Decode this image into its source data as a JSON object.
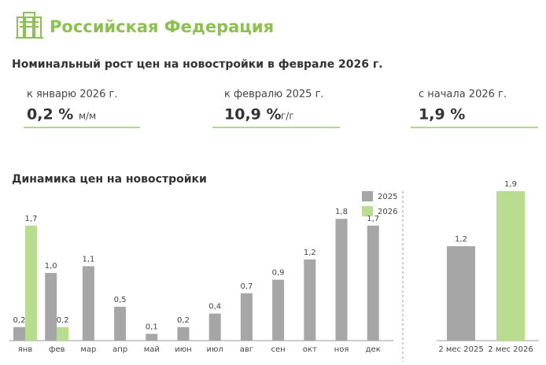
{
  "header": {
    "title": "Российская Федерация"
  },
  "subtitle": "Номинальный рост цен на новостройки в феврале 2026 г.",
  "kpis": [
    {
      "label": "к январю 2026 г.",
      "value": "0,2 %",
      "unit": "м/м"
    },
    {
      "label": "к февралю 2025 г.",
      "value": "10,9 %",
      "unit": "г/г"
    },
    {
      "label": "с начала 2026 г.",
      "value": "1,9 %"
    }
  ],
  "chart_data": [
    {
      "type": "bar",
      "title": "Динамика цен на новостройки",
      "categories": [
        "янв",
        "фев",
        "мар",
        "апр",
        "май",
        "июн",
        "июл",
        "авг",
        "сен",
        "окт",
        "ноя",
        "дек"
      ],
      "series": [
        {
          "name": "2025",
          "color": "#a6a6a6",
          "values": [
            0.2,
            1.0,
            1.1,
            0.5,
            0.1,
            0.2,
            0.4,
            0.7,
            0.9,
            1.2,
            1.8,
            1.7
          ],
          "value_labels": [
            "0,2",
            "1,0",
            "1,1",
            "0,5",
            "0,1",
            "0,2",
            "0,4",
            "0,7",
            "0,9",
            "1,2",
            "1,8",
            "1,7"
          ]
        },
        {
          "name": "2026",
          "color": "#b8dd91",
          "values": [
            1.7,
            0.2,
            null,
            null,
            null,
            null,
            null,
            null,
            null,
            null,
            null,
            null
          ],
          "value_labels": [
            "1,7",
            "0,2",
            null,
            null,
            null,
            null,
            null,
            null,
            null,
            null,
            null,
            null
          ]
        }
      ]
    },
    {
      "type": "bar",
      "categories": [
        "2 мес 2025",
        "2 мес 2026"
      ],
      "values": [
        1.2,
        1.9
      ],
      "value_labels": [
        "1,2",
        "1,9"
      ],
      "colors": [
        "#a6a6a6",
        "#b8dd91"
      ]
    }
  ]
}
